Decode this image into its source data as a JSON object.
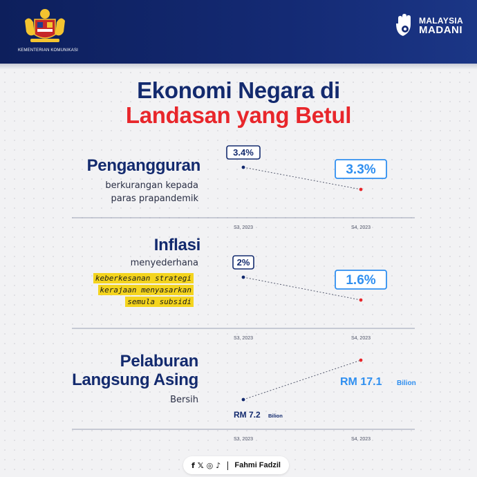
{
  "header": {
    "ministry": "KEMENTERIAN KOMUNIKASI",
    "brand_line1": "MALAYSIA",
    "brand_line2": "MADANI"
  },
  "title": {
    "line1": "Ekonomi Negara di",
    "line2": "Landasan yang Betul"
  },
  "sections": {
    "unemployment": {
      "heading": "Pengangguran",
      "sub1": "berkurangan kepada",
      "sub2": "paras prapandemik"
    },
    "inflation": {
      "heading": "Inflasi",
      "sub1": "menyederhana",
      "highlight": [
        "keberkesanan strategi",
        "kerajaan menyasarkan",
        "semula subsidi"
      ]
    },
    "fdi": {
      "heading1": "Pelaburan",
      "heading2": "Langsung Asing",
      "sub1": "Bersih"
    }
  },
  "chart_data": [
    {
      "type": "line",
      "categories": [
        "S3, 2023",
        "S4, 2023"
      ],
      "values": [
        3.4,
        3.3
      ],
      "labels": [
        "3.4%",
        "3.3%"
      ],
      "title": "Pengangguran",
      "ylim": [
        3.25,
        3.45
      ]
    },
    {
      "type": "line",
      "categories": [
        "S3, 2023",
        "S4, 2023"
      ],
      "values": [
        2.0,
        1.6
      ],
      "labels": [
        "2%",
        "1.6%"
      ],
      "title": "Inflasi",
      "ylim": [
        1.45,
        2.1
      ]
    },
    {
      "type": "line",
      "categories": [
        "S3, 2023",
        "S4, 2023"
      ],
      "values": [
        7.2,
        17.1
      ],
      "labels": [
        {
          "value": "RM 7.2",
          "unit": "Bilion"
        },
        {
          "value": "RM 17.1",
          "unit": "Bilion"
        }
      ],
      "title": "Pelaburan Langsung Asing Bersih",
      "ylim": [
        6.0,
        18.0
      ]
    }
  ],
  "colors": {
    "navy": "#132a6e",
    "red": "#e8262b",
    "blue": "#2f8ff0",
    "highlight": "#f4d41e"
  },
  "footer": {
    "social_icons": [
      "facebook-icon",
      "x-icon",
      "instagram-icon",
      "tiktok-icon"
    ],
    "separator": "|",
    "name": "Fahmi Fadzil"
  }
}
